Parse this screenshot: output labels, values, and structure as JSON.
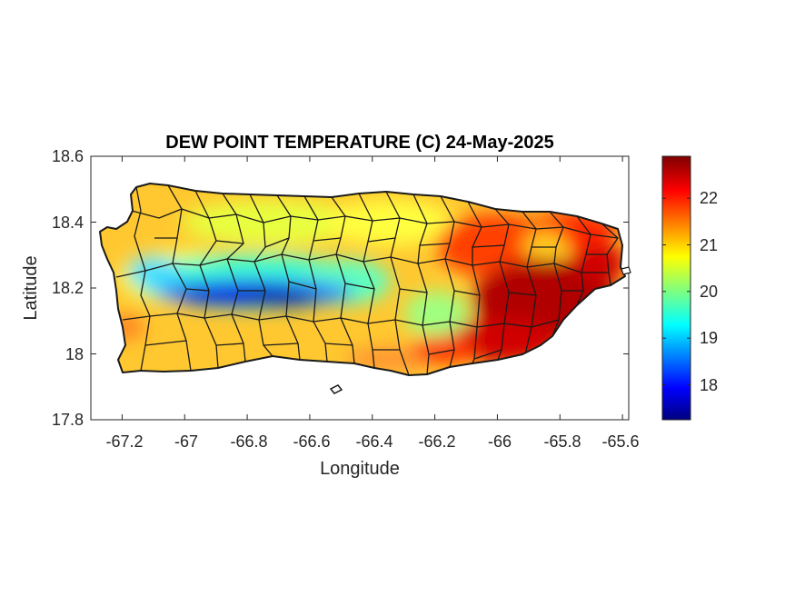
{
  "title": "DEW POINT TEMPERATURE (C) 24-May-2025",
  "xlabel": "Longitude",
  "ylabel": "Latitude",
  "xticks": [
    "-67.2",
    "-67",
    "-66.8",
    "-66.6",
    "-66.4",
    "-66.2",
    "-66",
    "-65.8",
    "-65.6"
  ],
  "yticks": [
    "18.6",
    "18.4",
    "18.2",
    "18",
    "17.8"
  ],
  "colorbar_ticks": [
    "22",
    "21",
    "20",
    "19",
    "18"
  ],
  "chart_data": {
    "type": "heatmap",
    "title": "DEW POINT TEMPERATURE (C) 24-May-2025",
    "xlabel": "Longitude",
    "ylabel": "Latitude",
    "xlim": [
      -67.3,
      -65.58
    ],
    "ylim": [
      17.8,
      18.6
    ],
    "xticks": [
      -67.2,
      -67.0,
      -66.8,
      -66.6,
      -66.4,
      -66.2,
      -66.0,
      -65.8,
      -65.6
    ],
    "yticks": [
      17.8,
      18.0,
      18.2,
      18.4,
      18.6
    ],
    "colorbar": {
      "range": [
        17.25,
        22.9
      ],
      "ticks": [
        18,
        19,
        20,
        21,
        22
      ],
      "colormap": "jet",
      "colors": [
        "#00007f",
        "#0000ff",
        "#00ffff",
        "#ffff00",
        "#ff0000",
        "#7f0000"
      ]
    },
    "region": "Puerto Rico with municipality boundaries"
  }
}
